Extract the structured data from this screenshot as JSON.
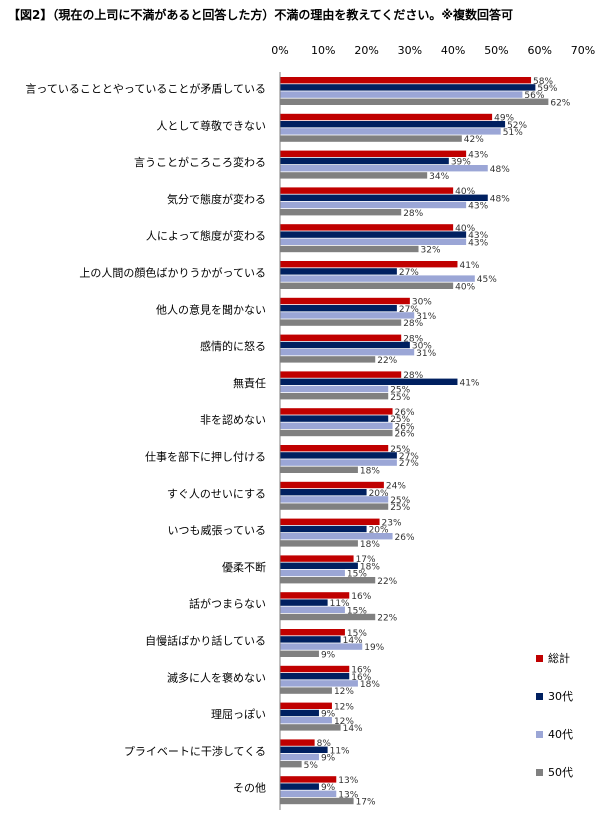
{
  "title": "【図2】（現在の上司に不満があると回答した方）不満の理由を教えてください。※複数回答可",
  "chart_data": {
    "type": "bar",
    "orientation": "horizontal",
    "title": "【図2】（現在の上司に不満があると回答した方）不満の理由を教えてください。※複数回答可",
    "unit": "%",
    "xlim": [
      0,
      70
    ],
    "ticks": [
      0,
      10,
      20,
      30,
      40,
      50,
      60,
      70
    ],
    "tick_labels": [
      "0%",
      "10%",
      "20%",
      "30%",
      "40%",
      "50%",
      "60%",
      "70%"
    ],
    "categories": [
      "言っていることとやっていることが矛盾している",
      "人として尊敬できない",
      "言うことがころころ変わる",
      "気分で態度が変わる",
      "人によって態度が変わる",
      "上の人間の顔色ばかりうかがっている",
      "他人の意見を聞かない",
      "感情的に怒る",
      "無責任",
      "非を認めない",
      "仕事を部下に押し付ける",
      "すぐ人のせいにする",
      "いつも威張っている",
      "優柔不断",
      "話がつまらない",
      "自慢話ばかり話している",
      "滅多に人を褒めない",
      "理屈っぽい",
      "プライベートに干渉してくる",
      "その他"
    ],
    "series": [
      {
        "name": "総計",
        "color": "#c00000",
        "values": [
          58,
          49,
          43,
          40,
          40,
          41,
          30,
          28,
          28,
          26,
          25,
          24,
          23,
          17,
          16,
          15,
          16,
          12,
          8,
          13
        ]
      },
      {
        "name": "30代",
        "color": "#002060",
        "values": [
          59,
          52,
          39,
          48,
          43,
          27,
          27,
          30,
          41,
          25,
          27,
          20,
          20,
          18,
          11,
          14,
          16,
          9,
          11,
          9
        ]
      },
      {
        "name": "40代",
        "color": "#9ba6d6",
        "values": [
          56,
          51,
          48,
          43,
          43,
          45,
          31,
          31,
          25,
          26,
          27,
          25,
          26,
          15,
          15,
          19,
          18,
          12,
          9,
          13
        ]
      },
      {
        "name": "50代",
        "color": "#808080",
        "values": [
          62,
          42,
          34,
          28,
          32,
          40,
          28,
          22,
          25,
          26,
          18,
          25,
          18,
          22,
          22,
          9,
          12,
          14,
          5,
          17
        ]
      }
    ],
    "legend_position": "right-bottom",
    "grid": false
  }
}
